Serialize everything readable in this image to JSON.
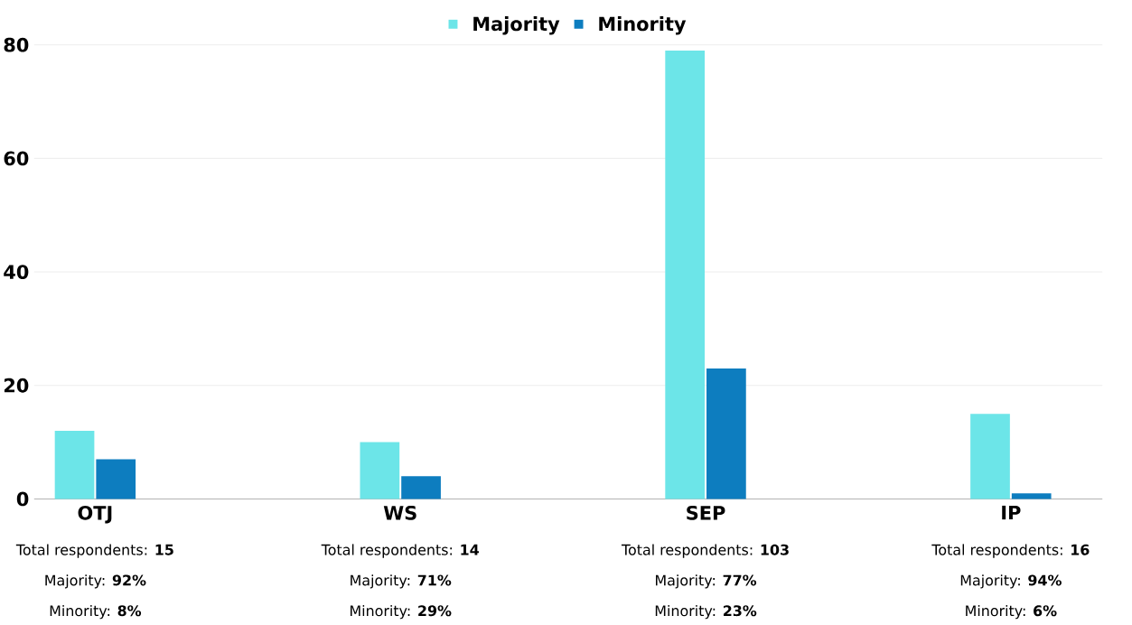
{
  "chart_data": {
    "type": "bar",
    "categories": [
      "OTJ",
      "WS",
      "SEP",
      "IP"
    ],
    "series": [
      {
        "name": "Majority",
        "color": "#6ce5e8",
        "values": [
          12,
          10,
          79,
          15
        ]
      },
      {
        "name": "Minority",
        "color": "#0d7dbf",
        "values": [
          7,
          4,
          23,
          1
        ]
      }
    ],
    "ylim": [
      0,
      80
    ],
    "yticks": [
      0,
      20,
      40,
      60,
      80
    ],
    "grid": "y",
    "legend": "top",
    "annotations": [
      "Total respondents: **15**",
      "Majority: **92%**",
      "Minority: **8%**",
      "Total respondents: **14**",
      "Majority: **71%**",
      "Minority: **29%**",
      "Total respondents: **103**",
      "Majority: **77%**",
      "Minority: **23%**",
      "Total respondents: **16**",
      "Majority: **94%**",
      "Minority: **6%**"
    ]
  }
}
